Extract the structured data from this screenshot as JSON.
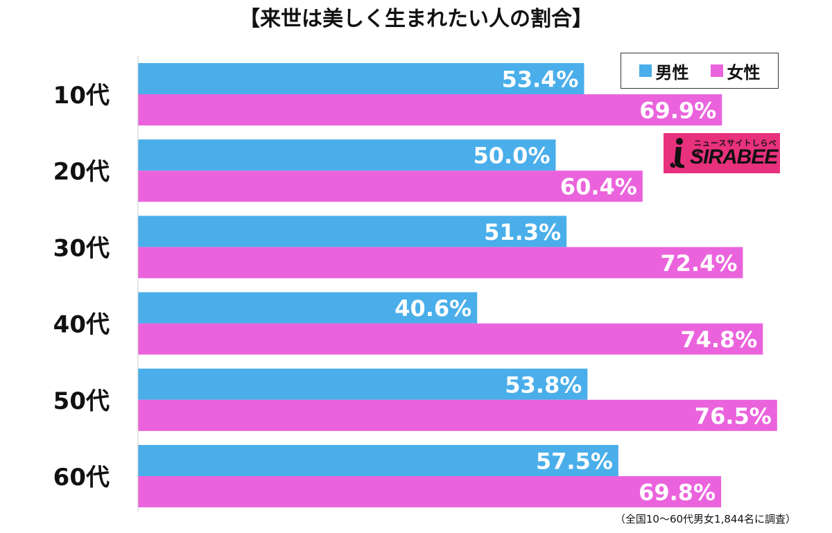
{
  "chart_data": {
    "type": "bar",
    "orientation": "horizontal",
    "title": "【来世は美しく生まれたい人の割合】",
    "categories": [
      "10代",
      "20代",
      "30代",
      "40代",
      "50代",
      "60代"
    ],
    "series": [
      {
        "name": "男性",
        "color": "#4aaeea",
        "values": [
          53.4,
          50.0,
          51.3,
          40.6,
          53.8,
          57.5
        ],
        "labels": [
          "53.4%",
          "50.0%",
          "51.3%",
          "40.6%",
          "53.8%",
          "57.5%"
        ]
      },
      {
        "name": "女性",
        "color": "#ea63dc",
        "values": [
          69.9,
          60.4,
          72.4,
          74.8,
          76.5,
          69.8
        ],
        "labels": [
          "69.9%",
          "60.4%",
          "72.4%",
          "74.8%",
          "76.5%",
          "69.8%"
        ]
      }
    ],
    "xlim": [
      0,
      80
    ],
    "grid": false,
    "legend_position": "top-right",
    "note": "（全国10〜60代男女1,844名に調査）"
  },
  "logo": {
    "tagline": "ニュースサイトしらべぇ",
    "wordmark": "SIRABEE",
    "color": "#e8317d"
  }
}
